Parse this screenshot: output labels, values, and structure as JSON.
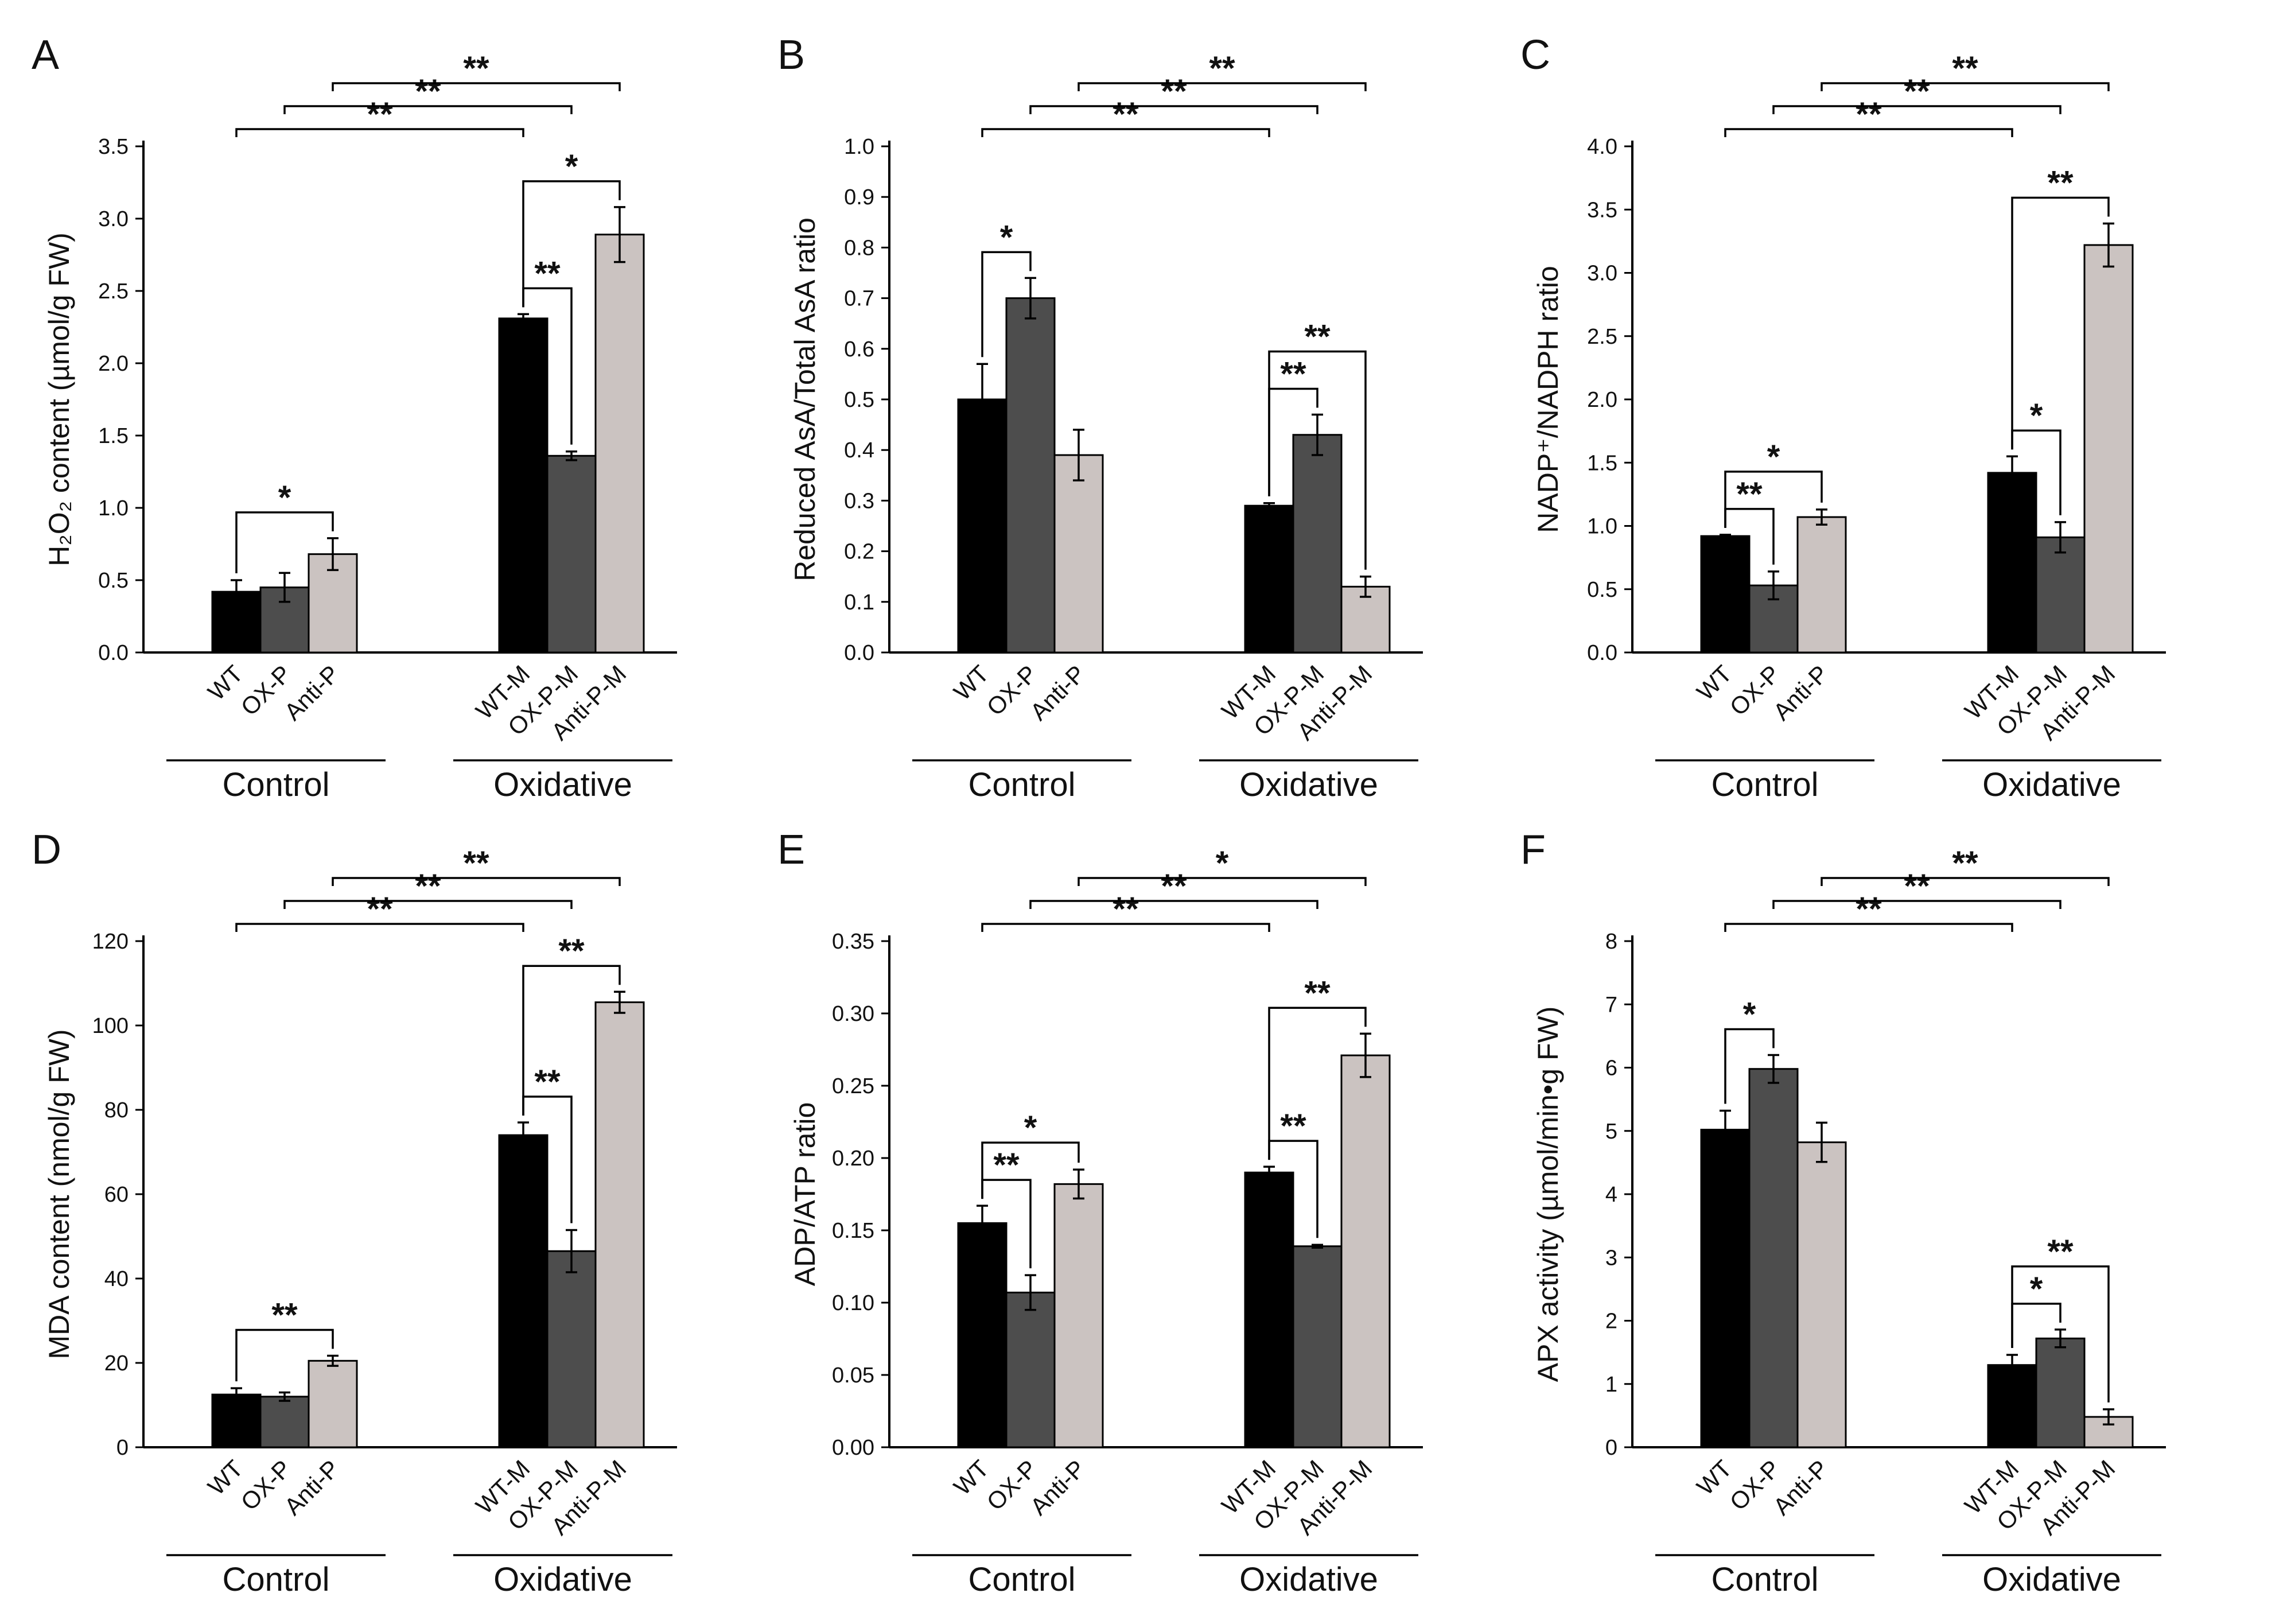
{
  "chart_data": [
    {
      "panel": "A",
      "type": "bar",
      "ylabel": "H₂O₂ content (µmol/g FW)",
      "ylim": [
        0,
        3.5
      ],
      "yticks": [
        "0.0",
        "0.5",
        "1.0",
        "1.5",
        "2.0",
        "2.5",
        "3.0",
        "3.5"
      ],
      "groups": [
        {
          "name": "Control",
          "categories": [
            "WT",
            "OX-P",
            "Anti-P"
          ],
          "values": [
            0.42,
            0.45,
            0.68
          ],
          "errors": [
            0.08,
            0.1,
            0.11
          ]
        },
        {
          "name": "Oxidative",
          "categories": [
            "WT-M",
            "OX-P-M",
            "Anti-P-M"
          ],
          "values": [
            2.31,
            1.36,
            2.89
          ],
          "errors": [
            0.03,
            0.03,
            0.19
          ]
        }
      ],
      "significance": [
        {
          "from": [
            0,
            0
          ],
          "to": [
            0,
            2
          ],
          "label": "*"
        },
        {
          "from": [
            1,
            0
          ],
          "to": [
            1,
            1
          ],
          "label": "**"
        },
        {
          "from": [
            1,
            0
          ],
          "to": [
            1,
            2
          ],
          "label": "*"
        },
        {
          "from": [
            0,
            0
          ],
          "to": [
            1,
            0
          ],
          "label": "**"
        },
        {
          "from": [
            0,
            1
          ],
          "to": [
            1,
            1
          ],
          "label": "**"
        },
        {
          "from": [
            0,
            2
          ],
          "to": [
            1,
            2
          ],
          "label": "**"
        }
      ]
    },
    {
      "panel": "B",
      "type": "bar",
      "ylabel": "Reduced AsA/Total AsA ratio",
      "ylim": [
        0,
        1.0
      ],
      "yticks": [
        "0.0",
        "0.1",
        "0.2",
        "0.3",
        "0.4",
        "0.5",
        "0.6",
        "0.7",
        "0.8",
        "0.9",
        "1.0"
      ],
      "groups": [
        {
          "name": "Control",
          "categories": [
            "WT",
            "OX-P",
            "Anti-P"
          ],
          "values": [
            0.5,
            0.7,
            0.39
          ],
          "errors": [
            0.07,
            0.04,
            0.05
          ]
        },
        {
          "name": "Oxidative",
          "categories": [
            "WT-M",
            "OX-P-M",
            "Anti-P-M"
          ],
          "values": [
            0.29,
            0.43,
            0.13
          ],
          "errors": [
            0.005,
            0.04,
            0.02
          ]
        }
      ],
      "significance": [
        {
          "from": [
            0,
            0
          ],
          "to": [
            0,
            1
          ],
          "label": "*"
        },
        {
          "from": [
            1,
            0
          ],
          "to": [
            1,
            1
          ],
          "label": "**"
        },
        {
          "from": [
            1,
            0
          ],
          "to": [
            1,
            2
          ],
          "label": "**"
        },
        {
          "from": [
            0,
            0
          ],
          "to": [
            1,
            0
          ],
          "label": "**"
        },
        {
          "from": [
            0,
            1
          ],
          "to": [
            1,
            1
          ],
          "label": "**"
        },
        {
          "from": [
            0,
            2
          ],
          "to": [
            1,
            2
          ],
          "label": "**"
        }
      ]
    },
    {
      "panel": "C",
      "type": "bar",
      "ylabel": "NADP⁺/NADPH ratio",
      "ylim": [
        0,
        4.0
      ],
      "yticks": [
        "0.0",
        "0.5",
        "1.0",
        "1.5",
        "2.0",
        "2.5",
        "3.0",
        "3.5",
        "4.0"
      ],
      "groups": [
        {
          "name": "Control",
          "categories": [
            "WT",
            "OX-P",
            "Anti-P"
          ],
          "values": [
            0.92,
            0.53,
            1.07
          ],
          "errors": [
            0.01,
            0.11,
            0.06
          ]
        },
        {
          "name": "Oxidative",
          "categories": [
            "WT-M",
            "OX-P-M",
            "Anti-P-M"
          ],
          "values": [
            1.42,
            0.91,
            3.22
          ],
          "errors": [
            0.13,
            0.12,
            0.17
          ]
        }
      ],
      "significance": [
        {
          "from": [
            0,
            0
          ],
          "to": [
            0,
            1
          ],
          "label": "**"
        },
        {
          "from": [
            0,
            0
          ],
          "to": [
            0,
            2
          ],
          "label": "*"
        },
        {
          "from": [
            1,
            0
          ],
          "to": [
            1,
            1
          ],
          "label": "*"
        },
        {
          "from": [
            1,
            0
          ],
          "to": [
            1,
            2
          ],
          "label": "**"
        },
        {
          "from": [
            0,
            0
          ],
          "to": [
            1,
            0
          ],
          "label": "**"
        },
        {
          "from": [
            0,
            1
          ],
          "to": [
            1,
            1
          ],
          "label": "**"
        },
        {
          "from": [
            0,
            2
          ],
          "to": [
            1,
            2
          ],
          "label": "**"
        }
      ]
    },
    {
      "panel": "D",
      "type": "bar",
      "ylabel": "MDA content (nmol/g FW)",
      "ylim": [
        0,
        120
      ],
      "yticks": [
        "0",
        "20",
        "40",
        "60",
        "80",
        "100",
        "120"
      ],
      "groups": [
        {
          "name": "Control",
          "categories": [
            "WT",
            "OX-P",
            "Anti-P"
          ],
          "values": [
            12.5,
            12.0,
            20.5
          ],
          "errors": [
            1.5,
            1.0,
            1.2
          ]
        },
        {
          "name": "Oxidative",
          "categories": [
            "WT-M",
            "OX-P-M",
            "Anti-P-M"
          ],
          "values": [
            74.0,
            46.5,
            105.5
          ],
          "errors": [
            3.0,
            5.0,
            2.5
          ]
        }
      ],
      "significance": [
        {
          "from": [
            0,
            0
          ],
          "to": [
            0,
            2
          ],
          "label": "**"
        },
        {
          "from": [
            1,
            0
          ],
          "to": [
            1,
            1
          ],
          "label": "**"
        },
        {
          "from": [
            1,
            0
          ],
          "to": [
            1,
            2
          ],
          "label": "**"
        },
        {
          "from": [
            0,
            0
          ],
          "to": [
            1,
            0
          ],
          "label": "**"
        },
        {
          "from": [
            0,
            1
          ],
          "to": [
            1,
            1
          ],
          "label": "**"
        },
        {
          "from": [
            0,
            2
          ],
          "to": [
            1,
            2
          ],
          "label": "**"
        }
      ]
    },
    {
      "panel": "E",
      "type": "bar",
      "ylabel": "ADP/ATP ratio",
      "ylim": [
        0,
        0.35
      ],
      "yticks": [
        "0.00",
        "0.05",
        "0.10",
        "0.15",
        "0.20",
        "0.25",
        "0.30",
        "0.35"
      ],
      "groups": [
        {
          "name": "Control",
          "categories": [
            "WT",
            "OX-P",
            "Anti-P"
          ],
          "values": [
            0.155,
            0.107,
            0.182
          ],
          "errors": [
            0.012,
            0.012,
            0.01
          ]
        },
        {
          "name": "Oxidative",
          "categories": [
            "WT-M",
            "OX-P-M",
            "Anti-P-M"
          ],
          "values": [
            0.19,
            0.139,
            0.271
          ],
          "errors": [
            0.004,
            0.001,
            0.015
          ]
        }
      ],
      "significance": [
        {
          "from": [
            0,
            0
          ],
          "to": [
            0,
            1
          ],
          "label": "**"
        },
        {
          "from": [
            0,
            0
          ],
          "to": [
            0,
            2
          ],
          "label": "*"
        },
        {
          "from": [
            1,
            0
          ],
          "to": [
            1,
            1
          ],
          "label": "**"
        },
        {
          "from": [
            1,
            0
          ],
          "to": [
            1,
            2
          ],
          "label": "**"
        },
        {
          "from": [
            0,
            0
          ],
          "to": [
            1,
            0
          ],
          "label": "**"
        },
        {
          "from": [
            0,
            1
          ],
          "to": [
            1,
            1
          ],
          "label": "**"
        },
        {
          "from": [
            0,
            2
          ],
          "to": [
            1,
            2
          ],
          "label": "*"
        }
      ]
    },
    {
      "panel": "F",
      "type": "bar",
      "ylabel": "APX activity (µmol/min•g FW)",
      "ylim": [
        0,
        8
      ],
      "yticks": [
        "0",
        "1",
        "2",
        "3",
        "4",
        "5",
        "6",
        "7",
        "8"
      ],
      "groups": [
        {
          "name": "Control",
          "categories": [
            "WT",
            "OX-P",
            "Anti-P"
          ],
          "values": [
            5.02,
            5.98,
            4.82
          ],
          "errors": [
            0.3,
            0.22,
            0.31
          ]
        },
        {
          "name": "Oxidative",
          "categories": [
            "WT-M",
            "OX-P-M",
            "Anti-P-M"
          ],
          "values": [
            1.3,
            1.72,
            0.48
          ],
          "errors": [
            0.16,
            0.14,
            0.12
          ]
        }
      ],
      "significance": [
        {
          "from": [
            0,
            0
          ],
          "to": [
            0,
            1
          ],
          "label": "*"
        },
        {
          "from": [
            1,
            0
          ],
          "to": [
            1,
            1
          ],
          "label": "*"
        },
        {
          "from": [
            1,
            0
          ],
          "to": [
            1,
            2
          ],
          "label": "**"
        },
        {
          "from": [
            0,
            0
          ],
          "to": [
            1,
            0
          ],
          "label": "**"
        },
        {
          "from": [
            0,
            1
          ],
          "to": [
            1,
            1
          ],
          "label": "**"
        },
        {
          "from": [
            0,
            2
          ],
          "to": [
            1,
            2
          ],
          "label": "**"
        }
      ]
    }
  ],
  "colors": {
    "bar_fills": [
      "#000000",
      "#4d4d4d",
      "#cbc3c1"
    ],
    "stroke": "#000000"
  }
}
